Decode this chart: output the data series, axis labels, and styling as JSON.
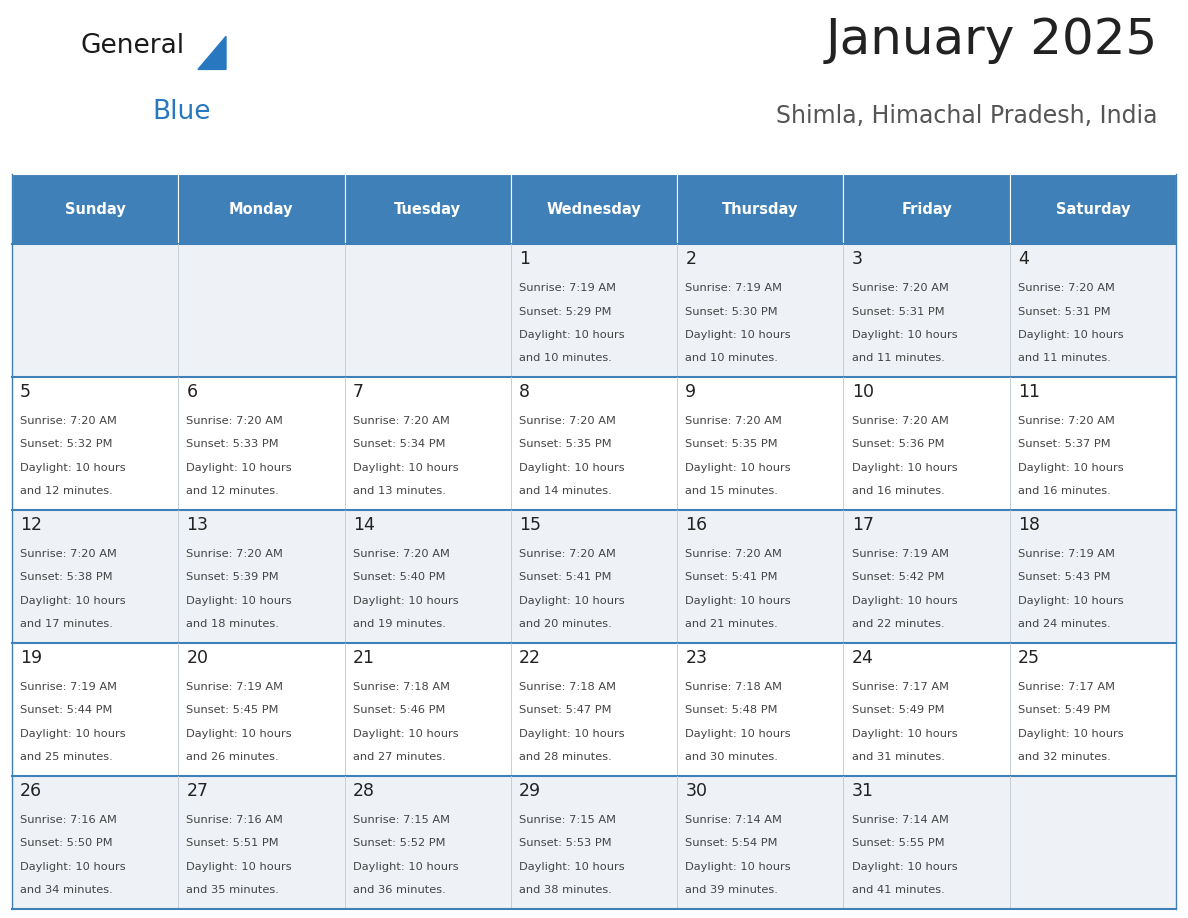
{
  "title": "January 2025",
  "subtitle": "Shimla, Himachal Pradesh, India",
  "days_of_week": [
    "Sunday",
    "Monday",
    "Tuesday",
    "Wednesday",
    "Thursday",
    "Friday",
    "Saturday"
  ],
  "header_bg": "#4080b8",
  "header_text": "#ffffff",
  "row_bg_light": "#eef2f7",
  "row_bg_white": "#ffffff",
  "cell_border_color": "#4080b8",
  "cell_divider_color": "#c0c8d0",
  "day_num_color": "#222222",
  "text_color": "#444444",
  "title_color": "#222222",
  "subtitle_color": "#555555",
  "logo_general_color": "#1a1a1a",
  "logo_blue_color": "#2878c0",
  "calendar_data": [
    [
      null,
      null,
      null,
      {
        "day": 1,
        "sunrise": "7:19 AM",
        "sunset": "5:29 PM",
        "daylight": "10 hours and 10 minutes."
      },
      {
        "day": 2,
        "sunrise": "7:19 AM",
        "sunset": "5:30 PM",
        "daylight": "10 hours and 10 minutes."
      },
      {
        "day": 3,
        "sunrise": "7:20 AM",
        "sunset": "5:31 PM",
        "daylight": "10 hours and 11 minutes."
      },
      {
        "day": 4,
        "sunrise": "7:20 AM",
        "sunset": "5:31 PM",
        "daylight": "10 hours and 11 minutes."
      }
    ],
    [
      {
        "day": 5,
        "sunrise": "7:20 AM",
        "sunset": "5:32 PM",
        "daylight": "10 hours and 12 minutes."
      },
      {
        "day": 6,
        "sunrise": "7:20 AM",
        "sunset": "5:33 PM",
        "daylight": "10 hours and 12 minutes."
      },
      {
        "day": 7,
        "sunrise": "7:20 AM",
        "sunset": "5:34 PM",
        "daylight": "10 hours and 13 minutes."
      },
      {
        "day": 8,
        "sunrise": "7:20 AM",
        "sunset": "5:35 PM",
        "daylight": "10 hours and 14 minutes."
      },
      {
        "day": 9,
        "sunrise": "7:20 AM",
        "sunset": "5:35 PM",
        "daylight": "10 hours and 15 minutes."
      },
      {
        "day": 10,
        "sunrise": "7:20 AM",
        "sunset": "5:36 PM",
        "daylight": "10 hours and 16 minutes."
      },
      {
        "day": 11,
        "sunrise": "7:20 AM",
        "sunset": "5:37 PM",
        "daylight": "10 hours and 16 minutes."
      }
    ],
    [
      {
        "day": 12,
        "sunrise": "7:20 AM",
        "sunset": "5:38 PM",
        "daylight": "10 hours and 17 minutes."
      },
      {
        "day": 13,
        "sunrise": "7:20 AM",
        "sunset": "5:39 PM",
        "daylight": "10 hours and 18 minutes."
      },
      {
        "day": 14,
        "sunrise": "7:20 AM",
        "sunset": "5:40 PM",
        "daylight": "10 hours and 19 minutes."
      },
      {
        "day": 15,
        "sunrise": "7:20 AM",
        "sunset": "5:41 PM",
        "daylight": "10 hours and 20 minutes."
      },
      {
        "day": 16,
        "sunrise": "7:20 AM",
        "sunset": "5:41 PM",
        "daylight": "10 hours and 21 minutes."
      },
      {
        "day": 17,
        "sunrise": "7:19 AM",
        "sunset": "5:42 PM",
        "daylight": "10 hours and 22 minutes."
      },
      {
        "day": 18,
        "sunrise": "7:19 AM",
        "sunset": "5:43 PM",
        "daylight": "10 hours and 24 minutes."
      }
    ],
    [
      {
        "day": 19,
        "sunrise": "7:19 AM",
        "sunset": "5:44 PM",
        "daylight": "10 hours and 25 minutes."
      },
      {
        "day": 20,
        "sunrise": "7:19 AM",
        "sunset": "5:45 PM",
        "daylight": "10 hours and 26 minutes."
      },
      {
        "day": 21,
        "sunrise": "7:18 AM",
        "sunset": "5:46 PM",
        "daylight": "10 hours and 27 minutes."
      },
      {
        "day": 22,
        "sunrise": "7:18 AM",
        "sunset": "5:47 PM",
        "daylight": "10 hours and 28 minutes."
      },
      {
        "day": 23,
        "sunrise": "7:18 AM",
        "sunset": "5:48 PM",
        "daylight": "10 hours and 30 minutes."
      },
      {
        "day": 24,
        "sunrise": "7:17 AM",
        "sunset": "5:49 PM",
        "daylight": "10 hours and 31 minutes."
      },
      {
        "day": 25,
        "sunrise": "7:17 AM",
        "sunset": "5:49 PM",
        "daylight": "10 hours and 32 minutes."
      }
    ],
    [
      {
        "day": 26,
        "sunrise": "7:16 AM",
        "sunset": "5:50 PM",
        "daylight": "10 hours and 34 minutes."
      },
      {
        "day": 27,
        "sunrise": "7:16 AM",
        "sunset": "5:51 PM",
        "daylight": "10 hours and 35 minutes."
      },
      {
        "day": 28,
        "sunrise": "7:15 AM",
        "sunset": "5:52 PM",
        "daylight": "10 hours and 36 minutes."
      },
      {
        "day": 29,
        "sunrise": "7:15 AM",
        "sunset": "5:53 PM",
        "daylight": "10 hours and 38 minutes."
      },
      {
        "day": 30,
        "sunrise": "7:14 AM",
        "sunset": "5:54 PM",
        "daylight": "10 hours and 39 minutes."
      },
      {
        "day": 31,
        "sunrise": "7:14 AM",
        "sunset": "5:55 PM",
        "daylight": "10 hours and 41 minutes."
      },
      null
    ]
  ],
  "figsize": [
    11.88,
    9.18
  ],
  "dpi": 100
}
